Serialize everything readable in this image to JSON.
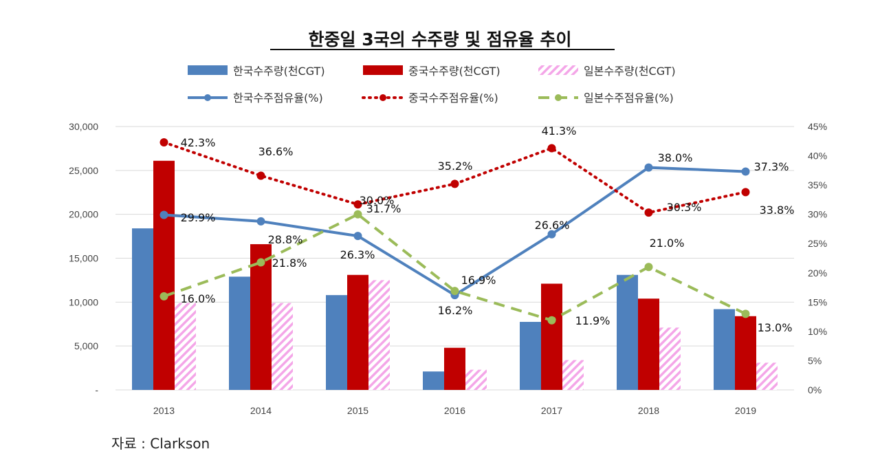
{
  "chart_data": {
    "type": "bar+line",
    "title": "한중일 3국의 수주량 및 점유율 추이",
    "categories": [
      "2013",
      "2014",
      "2015",
      "2016",
      "2017",
      "2018",
      "2019"
    ],
    "left_axis": {
      "range": [
        0,
        30000
      ],
      "ticks": [
        "-",
        "5,000",
        "10,000",
        "15,000",
        "20,000",
        "25,000",
        "30,000"
      ]
    },
    "right_axis": {
      "range": [
        0,
        45
      ],
      "ticks": [
        "0%",
        "5%",
        "10%",
        "15%",
        "20%",
        "25%",
        "30%",
        "35%",
        "40%",
        "45%"
      ]
    },
    "grid": true,
    "legend_placement": "top",
    "bar_series": [
      {
        "name": "한국수주량(천CGT)",
        "color": "#4f81bd",
        "values": [
          18400,
          12900,
          10800,
          2100,
          7750,
          13100,
          9200
        ]
      },
      {
        "name": "중국수주량(천CGT)",
        "color": "#c00000",
        "values": [
          26100,
          16600,
          13100,
          4800,
          12100,
          10400,
          8400
        ]
      },
      {
        "name": "일본수주량(천CGT)",
        "color": "#f4a6e8",
        "pattern": "diagonal-hatch",
        "values": [
          9900,
          9900,
          12500,
          2300,
          3400,
          7100,
          3100
        ]
      }
    ],
    "line_series": [
      {
        "name": "한국수주점유율(%)",
        "color": "#4f81bd",
        "style": "solid",
        "values": [
          29.9,
          28.8,
          26.3,
          16.2,
          26.6,
          38.0,
          37.3
        ],
        "labels": [
          "29.9%",
          "28.8%",
          "26.3%",
          "16.2%",
          "26.6%",
          "38.0%",
          "37.3%"
        ]
      },
      {
        "name": "중국수주점유율(%)",
        "color": "#c00000",
        "style": "dotted",
        "values": [
          42.3,
          36.6,
          31.7,
          35.2,
          41.3,
          30.3,
          33.8
        ],
        "labels": [
          "42.3%",
          "36.6%",
          "31.7%",
          "35.2%",
          "41.3%",
          "30.3%",
          "33.8%"
        ]
      },
      {
        "name": "일본수주점유율(%)",
        "color": "#9bbb59",
        "style": "dashed",
        "values": [
          16.0,
          21.8,
          30.0,
          16.9,
          11.9,
          21.0,
          13.0
        ],
        "labels": [
          "16.0%",
          "21.8%",
          "30.0%",
          "16.9%",
          "11.9%",
          "21.0%",
          "13.0%"
        ]
      }
    ],
    "source": "자료 : Clarkson"
  }
}
